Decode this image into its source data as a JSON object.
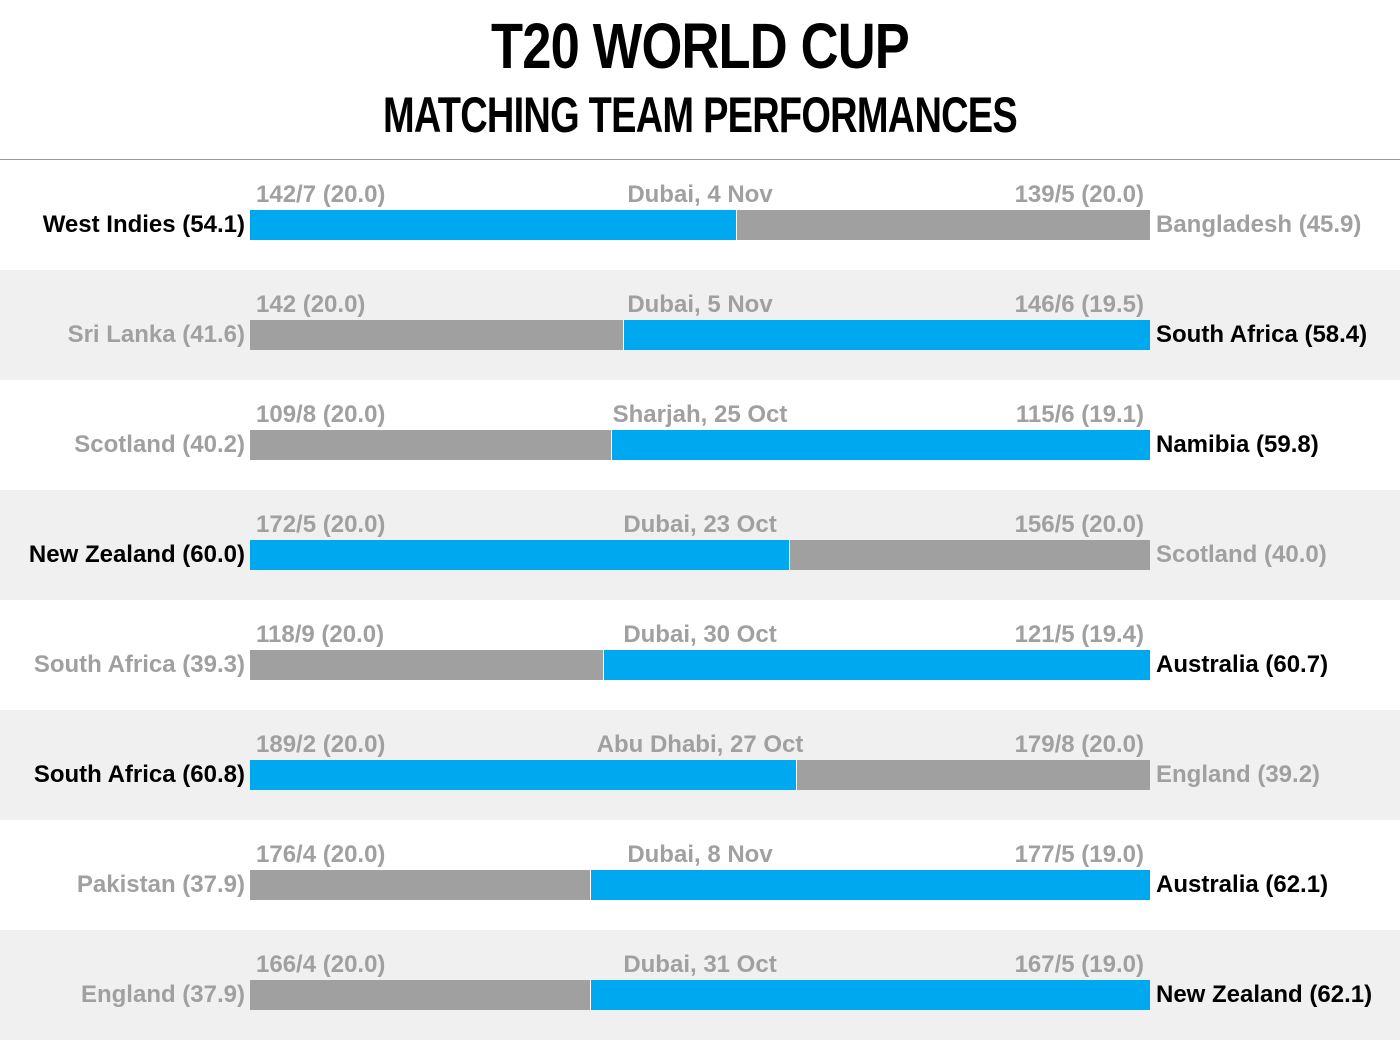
{
  "header": {
    "title": "T20 WORLD CUP",
    "subtitle": "MATCHING TEAM PERFORMANCES"
  },
  "colors": {
    "winner": "#00a8f0",
    "loser": "#a0a0a0",
    "winner_text": "#000000",
    "loser_text": "#a0a0a0"
  },
  "chart_data": {
    "type": "bar",
    "stacked": true,
    "orientation": "horizontal",
    "title": "T20 WORLD CUP",
    "subtitle": "MATCHING TEAM PERFORMANCES",
    "xlim": [
      0,
      100
    ],
    "matches": [
      {
        "venue": "Dubai, 4 Nov",
        "left": {
          "team": "West Indies",
          "value": 54.1,
          "label": "West Indies (54.1)",
          "score": "142/7 (20.0)",
          "winner": true
        },
        "right": {
          "team": "Bangladesh",
          "value": 45.9,
          "label": "Bangladesh (45.9)",
          "score": "139/5 (20.0)",
          "winner": false
        }
      },
      {
        "venue": "Dubai, 5 Nov",
        "left": {
          "team": "Sri Lanka",
          "value": 41.6,
          "label": "Sri Lanka (41.6)",
          "score": "142 (20.0)",
          "winner": false
        },
        "right": {
          "team": "South Africa",
          "value": 58.4,
          "label": "South Africa (58.4)",
          "score": "146/6 (19.5)",
          "winner": true
        }
      },
      {
        "venue": "Sharjah, 25 Oct",
        "left": {
          "team": "Scotland",
          "value": 40.2,
          "label": "Scotland (40.2)",
          "score": "109/8 (20.0)",
          "winner": false
        },
        "right": {
          "team": "Namibia",
          "value": 59.8,
          "label": "Namibia (59.8)",
          "score": "115/6 (19.1)",
          "winner": true
        }
      },
      {
        "venue": "Dubai, 23 Oct",
        "left": {
          "team": "New Zealand",
          "value": 60.0,
          "label": "New Zealand (60.0)",
          "score": "172/5 (20.0)",
          "winner": true
        },
        "right": {
          "team": "Scotland",
          "value": 40.0,
          "label": "Scotland (40.0)",
          "score": "156/5 (20.0)",
          "winner": false
        }
      },
      {
        "venue": "Dubai, 30 Oct",
        "left": {
          "team": "South Africa",
          "value": 39.3,
          "label": "South Africa (39.3)",
          "score": "118/9 (20.0)",
          "winner": false
        },
        "right": {
          "team": "Australia",
          "value": 60.7,
          "label": "Australia (60.7)",
          "score": "121/5 (19.4)",
          "winner": true
        }
      },
      {
        "venue": "Abu Dhabi, 27 Oct",
        "left": {
          "team": "South Africa",
          "value": 60.8,
          "label": "South Africa (60.8)",
          "score": "189/2 (20.0)",
          "winner": true
        },
        "right": {
          "team": "England",
          "value": 39.2,
          "label": "England (39.2)",
          "score": "179/8 (20.0)",
          "winner": false
        }
      },
      {
        "venue": "Dubai, 8 Nov",
        "left": {
          "team": "Pakistan",
          "value": 37.9,
          "label": "Pakistan (37.9)",
          "score": "176/4 (20.0)",
          "winner": false
        },
        "right": {
          "team": "Australia",
          "value": 62.1,
          "label": "Australia (62.1)",
          "score": "177/5 (19.0)",
          "winner": true
        }
      },
      {
        "venue": "Dubai, 31 Oct",
        "left": {
          "team": "England",
          "value": 37.9,
          "label": "England (37.9)",
          "score": "166/4 (20.0)",
          "winner": false
        },
        "right": {
          "team": "New Zealand",
          "value": 62.1,
          "label": "New Zealand (62.1)",
          "score": "167/5 (19.0)",
          "winner": true
        }
      }
    ]
  }
}
